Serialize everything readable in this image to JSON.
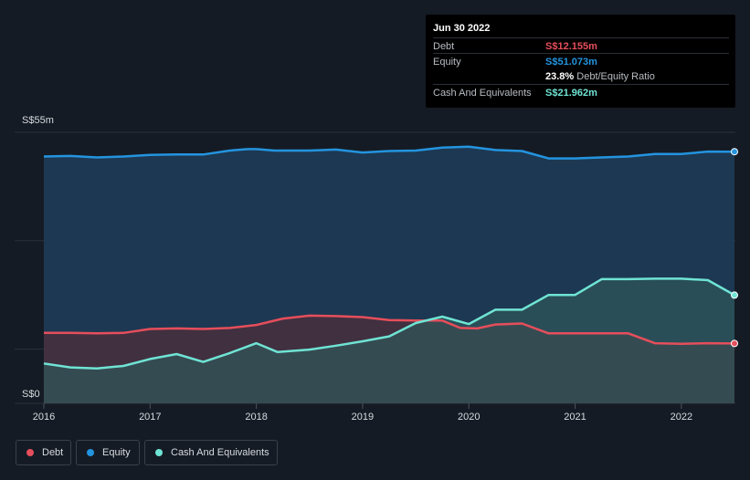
{
  "chart_data": {
    "type": "area",
    "title": "",
    "xlabel": "",
    "ylabel": "",
    "y_unit_labels": [
      "S$55m",
      "S$0"
    ],
    "ylim": [
      0,
      55
    ],
    "x_ticks": [
      "2016",
      "2017",
      "2018",
      "2019",
      "2020",
      "2021",
      "2022"
    ],
    "xlim": [
      2016.0,
      2022.5
    ],
    "series": [
      {
        "name": "Equity",
        "color": "#2394df",
        "x": [
          2016.0,
          2016.25,
          2016.5,
          2016.75,
          2017.0,
          2017.25,
          2017.5,
          2017.75,
          2017.92,
          2018.0,
          2018.17,
          2018.5,
          2018.75,
          2019.0,
          2019.25,
          2019.5,
          2019.75,
          2020.0,
          2020.25,
          2020.5,
          2020.75,
          2021.0,
          2021.25,
          2021.5,
          2021.75,
          2022.0,
          2022.25,
          2022.5
        ],
        "values": [
          50.1,
          50.2,
          49.9,
          50.1,
          50.4,
          50.5,
          50.5,
          51.3,
          51.6,
          51.6,
          51.3,
          51.3,
          51.5,
          50.9,
          51.2,
          51.3,
          51.9,
          52.1,
          51.4,
          51.2,
          49.7,
          49.7,
          49.9,
          50.1,
          50.6,
          50.6,
          51.1,
          51.073
        ]
      },
      {
        "name": "Debt",
        "color": "#e64e5b",
        "x": [
          2016.0,
          2016.25,
          2016.5,
          2016.75,
          2017.0,
          2017.25,
          2017.5,
          2017.75,
          2018.0,
          2018.25,
          2018.5,
          2018.75,
          2019.0,
          2019.25,
          2019.5,
          2019.75,
          2019.92,
          2020.08,
          2020.25,
          2020.5,
          2020.75,
          2021.0,
          2021.25,
          2021.5,
          2021.75,
          2022.0,
          2022.25,
          2022.5
        ],
        "values": [
          14.3,
          14.3,
          14.2,
          14.3,
          15.1,
          15.2,
          15.1,
          15.3,
          15.9,
          17.2,
          17.8,
          17.7,
          17.5,
          16.9,
          16.8,
          16.8,
          15.3,
          15.2,
          16.0,
          16.2,
          14.2,
          14.2,
          14.2,
          14.2,
          12.2,
          12.1,
          12.2,
          12.155
        ]
      },
      {
        "name": "Cash And Equivalents",
        "color": "#6fe4d4",
        "x": [
          2016.0,
          2016.25,
          2016.5,
          2016.75,
          2017.0,
          2017.25,
          2017.5,
          2017.75,
          2018.0,
          2018.2,
          2018.5,
          2018.75,
          2019.0,
          2019.25,
          2019.5,
          2019.75,
          2020.0,
          2020.25,
          2020.5,
          2020.75,
          2021.0,
          2021.25,
          2021.5,
          2021.75,
          2022.0,
          2022.25,
          2022.5
        ],
        "values": [
          8.1,
          7.3,
          7.1,
          7.6,
          9.0,
          10.0,
          8.4,
          10.2,
          12.2,
          10.4,
          10.9,
          11.7,
          12.6,
          13.6,
          16.3,
          17.6,
          16.1,
          19.0,
          19.0,
          22.0,
          22.0,
          25.2,
          25.2,
          25.3,
          25.3,
          25.0,
          21.962
        ]
      }
    ],
    "legend_position": "bottom-left"
  },
  "tooltip": {
    "date": "Jun 30 2022",
    "rows": [
      {
        "label": "Debt",
        "value": "S$12.155m",
        "color": "#e64e5b"
      },
      {
        "label": "Equity",
        "value": "S$51.073m",
        "color": "#2394df"
      },
      {
        "label": "",
        "value": "23.8%",
        "suffix": "Debt/Equity Ratio",
        "color": "#ffffff"
      },
      {
        "label": "Cash And Equivalents",
        "value": "S$21.962m",
        "color": "#6fe4d4"
      }
    ]
  },
  "legend": {
    "items": [
      {
        "label": "Debt",
        "color": "#e64e5b"
      },
      {
        "label": "Equity",
        "color": "#2394df"
      },
      {
        "label": "Cash And Equivalents",
        "color": "#6fe4d4"
      }
    ]
  }
}
